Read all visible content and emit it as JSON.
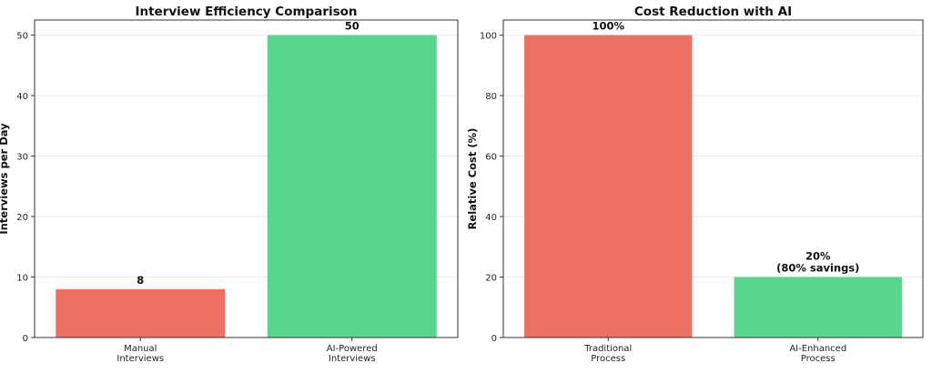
{
  "chart_data": [
    {
      "type": "bar",
      "title": "Interview Efficiency Comparison",
      "xlabel": "",
      "ylabel": "Interviews per Day",
      "categories": [
        [
          "Manual",
          "Interviews"
        ],
        [
          "AI-Powered",
          "Interviews"
        ]
      ],
      "values": [
        8,
        50
      ],
      "data_labels": [
        [
          "8"
        ],
        [
          "50"
        ]
      ],
      "colors": [
        "#e74c3c",
        "#2ecc71"
      ],
      "ylim": [
        0,
        52.5
      ],
      "yticks": [
        0,
        10,
        20,
        30,
        40,
        50
      ],
      "grid": true
    },
    {
      "type": "bar",
      "title": "Cost Reduction with AI",
      "xlabel": "",
      "ylabel": "Relative Cost (%)",
      "categories": [
        [
          "Traditional",
          "Process"
        ],
        [
          "AI-Enhanced",
          "Process"
        ]
      ],
      "values": [
        100,
        20
      ],
      "data_labels": [
        [
          "100%"
        ],
        [
          "20%",
          "(80% savings)"
        ]
      ],
      "colors": [
        "#e74c3c",
        "#2ecc71"
      ],
      "ylim": [
        0,
        105
      ],
      "yticks": [
        0,
        20,
        40,
        60,
        80,
        100
      ],
      "grid": true
    }
  ]
}
